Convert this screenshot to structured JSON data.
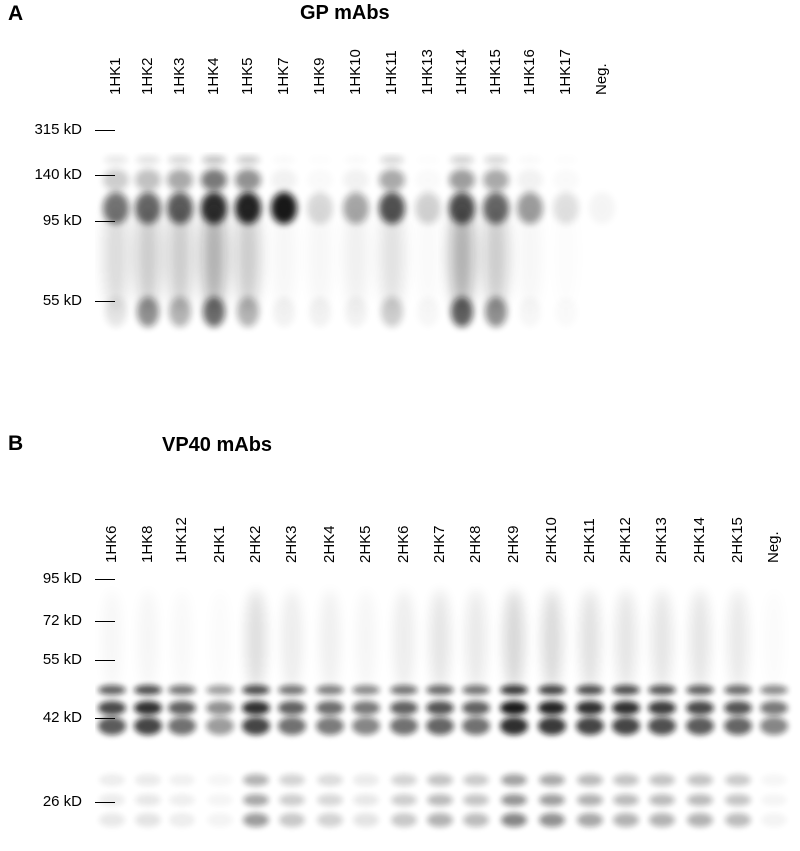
{
  "panel_a": {
    "letter": "A",
    "title": "GP mAbs",
    "lanes": [
      "1HK1",
      "1HK2",
      "1HK3",
      "1HK4",
      "1HK5",
      "1HK7",
      "1HK9",
      "1HK10",
      "1HK11",
      "1HK13",
      "1HK14",
      "1HK15",
      "1HK16",
      "1HK17",
      "Neg."
    ],
    "markers": [
      "315 kD",
      "140 kD",
      "95 kD",
      "55 kD"
    ]
  },
  "panel_b": {
    "letter": "B",
    "title": "VP40 mAbs",
    "lanes": [
      "1HK6",
      "1HK8",
      "1HK12",
      "2HK1",
      "2HK2",
      "2HK3",
      "2HK4",
      "2HK5",
      "2HK6",
      "2HK7",
      "2HK8",
      "2HK9",
      "2HK10",
      "2HK11",
      "2HK12",
      "2HK13",
      "2HK14",
      "2HK15",
      "Neg."
    ],
    "markers": [
      "95 kD",
      "72 kD",
      "55 kD",
      "42 kD",
      "26 kD"
    ]
  }
}
